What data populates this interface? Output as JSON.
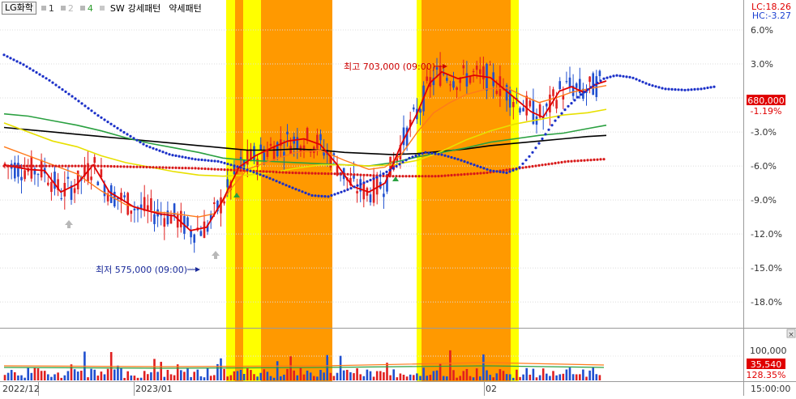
{
  "header": {
    "stock_name": "LG화학",
    "legend_numbers": [
      {
        "label": "1",
        "color": "#333333"
      },
      {
        "label": "2",
        "color": "#b8b8b8"
      },
      {
        "label": "4",
        "color": "#2f9e2f"
      }
    ],
    "sw_label": "SW",
    "strong_label": "강세패턴",
    "weak_label": "약세패턴"
  },
  "corner": {
    "lc": "LC:18.26",
    "hc": "HC:-3.27"
  },
  "annotations": {
    "high_label": "최고 703,000 (09:00)",
    "low_label": "최저 575,000 (09:00)"
  },
  "price_badge": {
    "value": "680,000",
    "change": "-1.19%"
  },
  "volume_badge": {
    "value": "35,540",
    "change": "128.35%"
  },
  "time_labels": [
    "2022/12",
    "2023/01",
    "02",
    "15:00:00"
  ],
  "chart_data": {
    "type": "candlestick",
    "y_axis_unit": "%",
    "y_ticks": [
      "6.0%",
      "3.0%",
      "0.0%",
      "-3.0%",
      "-6.0%",
      "-9.0%",
      "-12.0%",
      "-15.0%",
      "-18.0%"
    ],
    "y_range": [
      -20.2,
      8.5
    ],
    "volume_ticks": [
      "100,000"
    ],
    "price_high": 703000,
    "price_low": 575000,
    "last_price": 680000,
    "last_change_pct": -1.19,
    "last_volume": 35540,
    "volume_change_pct": 128.35,
    "pattern_zones": [
      {
        "x0": 279,
        "x1": 302,
        "kind": "yellow"
      },
      {
        "x0": 290,
        "x1": 300,
        "kind": "orange"
      },
      {
        "x0": 302,
        "x1": 322,
        "kind": "yellow"
      },
      {
        "x0": 322,
        "x1": 340,
        "kind": "orange"
      },
      {
        "x0": 340,
        "x1": 410,
        "kind": "orange"
      },
      {
        "x0": 514,
        "x1": 640,
        "kind": "yellow"
      },
      {
        "x0": 520,
        "x1": 630,
        "kind": "orange"
      }
    ],
    "pattern_colors": {
      "yellow": "#ffff00",
      "orange": "#ff9900"
    },
    "series_colors": {
      "candle_up": "#e02020",
      "candle_down": "#2050d0",
      "ma_red": "#e00000",
      "ma_orange": "#ff7a1a",
      "ma_yellow": "#e8e000",
      "ma_green": "#2aa040",
      "ma_black": "#000000",
      "dots_blue": "#1a2fc8",
      "dots_red": "#d81818"
    },
    "series_pct": {
      "ma_red": [
        [
          5,
          -5.9
        ],
        [
          35,
          -6.3
        ],
        [
          55,
          -6.4
        ],
        [
          75,
          -8.3
        ],
        [
          95,
          -7.6
        ],
        [
          115,
          -5.9
        ],
        [
          135,
          -8.3
        ],
        [
          165,
          -9.6
        ],
        [
          195,
          -10.2
        ],
        [
          215,
          -10.4
        ],
        [
          235,
          -11.7
        ],
        [
          255,
          -11.4
        ],
        [
          275,
          -9.0
        ],
        [
          295,
          -6.1
        ],
        [
          315,
          -5.1
        ],
        [
          335,
          -4.4
        ],
        [
          355,
          -3.8
        ],
        [
          375,
          -3.6
        ],
        [
          395,
          -4.1
        ],
        [
          415,
          -5.8
        ],
        [
          435,
          -7.8
        ],
        [
          455,
          -8.3
        ],
        [
          475,
          -7.5
        ],
        [
          495,
          -4.1
        ],
        [
          515,
          -1.3
        ],
        [
          530,
          1.3
        ],
        [
          545,
          2.3
        ],
        [
          565,
          1.7
        ],
        [
          585,
          2.0
        ],
        [
          605,
          1.8
        ],
        [
          625,
          0.6
        ],
        [
          640,
          -0.3
        ],
        [
          655,
          -1.2
        ],
        [
          670,
          -1.7
        ],
        [
          690,
          0.6
        ],
        [
          705,
          1.0
        ],
        [
          720,
          0.5
        ],
        [
          735,
          1.2
        ],
        [
          748,
          1.5
        ]
      ],
      "ma_orange": [
        [
          5,
          -4.3
        ],
        [
          35,
          -5.1
        ],
        [
          65,
          -5.9
        ],
        [
          95,
          -6.7
        ],
        [
          125,
          -8.2
        ],
        [
          155,
          -9.4
        ],
        [
          185,
          -10.0
        ],
        [
          215,
          -10.2
        ],
        [
          245,
          -10.5
        ],
        [
          265,
          -10.2
        ],
        [
          285,
          -8.0
        ],
        [
          305,
          -6.3
        ],
        [
          335,
          -5.5
        ],
        [
          365,
          -4.8
        ],
        [
          395,
          -4.6
        ],
        [
          425,
          -5.5
        ],
        [
          455,
          -6.3
        ],
        [
          475,
          -6.1
        ],
        [
          495,
          -5.0
        ],
        [
          515,
          -3.0
        ],
        [
          535,
          -1.3
        ],
        [
          555,
          -0.4
        ],
        [
          575,
          0.3
        ],
        [
          600,
          0.8
        ],
        [
          625,
          0.9
        ],
        [
          645,
          0.2
        ],
        [
          665,
          -0.4
        ],
        [
          685,
          0.0
        ],
        [
          705,
          0.5
        ],
        [
          725,
          0.8
        ],
        [
          748,
          1.1
        ]
      ],
      "ma_yellow": [
        [
          5,
          -2.2
        ],
        [
          35,
          -3.0
        ],
        [
          65,
          -3.8
        ],
        [
          95,
          -4.3
        ],
        [
          125,
          -5.1
        ],
        [
          155,
          -5.7
        ],
        [
          185,
          -6.1
        ],
        [
          215,
          -6.5
        ],
        [
          245,
          -6.8
        ],
        [
          275,
          -6.9
        ],
        [
          305,
          -6.8
        ],
        [
          335,
          -6.6
        ],
        [
          365,
          -6.2
        ],
        [
          395,
          -5.9
        ],
        [
          425,
          -5.9
        ],
        [
          455,
          -6.0
        ],
        [
          485,
          -5.9
        ],
        [
          515,
          -5.5
        ],
        [
          545,
          -4.7
        ],
        [
          575,
          -3.7
        ],
        [
          605,
          -2.9
        ],
        [
          635,
          -2.3
        ],
        [
          665,
          -1.9
        ],
        [
          695,
          -1.5
        ],
        [
          725,
          -1.3
        ],
        [
          748,
          -1.0
        ]
      ],
      "ma_green": [
        [
          5,
          -1.4
        ],
        [
          35,
          -1.6
        ],
        [
          65,
          -2.0
        ],
        [
          95,
          -2.4
        ],
        [
          125,
          -2.9
        ],
        [
          155,
          -3.5
        ],
        [
          185,
          -4.0
        ],
        [
          215,
          -4.4
        ],
        [
          245,
          -4.8
        ],
        [
          275,
          -5.3
        ],
        [
          305,
          -5.5
        ],
        [
          335,
          -5.6
        ],
        [
          365,
          -5.7
        ],
        [
          395,
          -5.8
        ],
        [
          425,
          -5.9
        ],
        [
          455,
          -6.0
        ],
        [
          485,
          -5.7
        ],
        [
          515,
          -5.2
        ],
        [
          545,
          -4.8
        ],
        [
          575,
          -4.4
        ],
        [
          605,
          -3.9
        ],
        [
          635,
          -3.6
        ],
        [
          665,
          -3.3
        ],
        [
          695,
          -3.1
        ],
        [
          725,
          -2.7
        ],
        [
          748,
          -2.4
        ]
      ],
      "ma_black": [
        [
          5,
          -2.6
        ],
        [
          35,
          -2.8
        ],
        [
          65,
          -3.0
        ],
        [
          95,
          -3.2
        ],
        [
          125,
          -3.4
        ],
        [
          155,
          -3.6
        ],
        [
          185,
          -3.8
        ],
        [
          215,
          -4.0
        ],
        [
          245,
          -4.2
        ],
        [
          275,
          -4.4
        ],
        [
          305,
          -4.6
        ],
        [
          335,
          -4.6
        ],
        [
          365,
          -4.5
        ],
        [
          395,
          -4.6
        ],
        [
          425,
          -4.8
        ],
        [
          455,
          -4.9
        ],
        [
          485,
          -5.0
        ],
        [
          515,
          -4.9
        ],
        [
          545,
          -4.7
        ],
        [
          575,
          -4.5
        ],
        [
          605,
          -4.2
        ],
        [
          635,
          -4.0
        ],
        [
          665,
          -3.8
        ],
        [
          695,
          -3.6
        ],
        [
          725,
          -3.4
        ],
        [
          748,
          -3.3
        ]
      ],
      "dots_blue": [
        [
          5,
          3.8
        ],
        [
          30,
          2.9
        ],
        [
          60,
          1.6
        ],
        [
          90,
          0.1
        ],
        [
          120,
          -1.5
        ],
        [
          150,
          -2.9
        ],
        [
          180,
          -4.2
        ],
        [
          210,
          -5.0
        ],
        [
          240,
          -5.4
        ],
        [
          270,
          -5.6
        ],
        [
          300,
          -6.2
        ],
        [
          330,
          -7.0
        ],
        [
          360,
          -7.9
        ],
        [
          385,
          -8.6
        ],
        [
          405,
          -8.7
        ],
        [
          425,
          -8.2
        ],
        [
          445,
          -7.6
        ],
        [
          465,
          -7.0
        ],
        [
          485,
          -6.2
        ],
        [
          505,
          -5.3
        ],
        [
          525,
          -4.8
        ],
        [
          545,
          -5.0
        ],
        [
          565,
          -5.4
        ],
        [
          585,
          -5.9
        ],
        [
          605,
          -6.4
        ],
        [
          625,
          -6.6
        ],
        [
          640,
          -6.2
        ],
        [
          655,
          -5.0
        ],
        [
          670,
          -3.5
        ],
        [
          685,
          -2.0
        ],
        [
          700,
          -0.8
        ],
        [
          715,
          0.2
        ],
        [
          730,
          1.0
        ],
        [
          745,
          1.7
        ],
        [
          760,
          2.0
        ],
        [
          780,
          1.8
        ],
        [
          800,
          1.2
        ],
        [
          820,
          0.8
        ],
        [
          845,
          0.7
        ],
        [
          865,
          0.8
        ],
        [
          882,
          1.0
        ]
      ],
      "dots_red": [
        [
          5,
          -6.0
        ],
        [
          60,
          -6.0
        ],
        [
          120,
          -6.0
        ],
        [
          180,
          -6.1
        ],
        [
          240,
          -6.2
        ],
        [
          300,
          -6.4
        ],
        [
          360,
          -6.6
        ],
        [
          420,
          -6.7
        ],
        [
          480,
          -6.9
        ],
        [
          540,
          -6.9
        ],
        [
          600,
          -6.6
        ],
        [
          660,
          -6.0
        ],
        [
          700,
          -5.6
        ],
        [
          745,
          -5.4
        ]
      ]
    }
  }
}
